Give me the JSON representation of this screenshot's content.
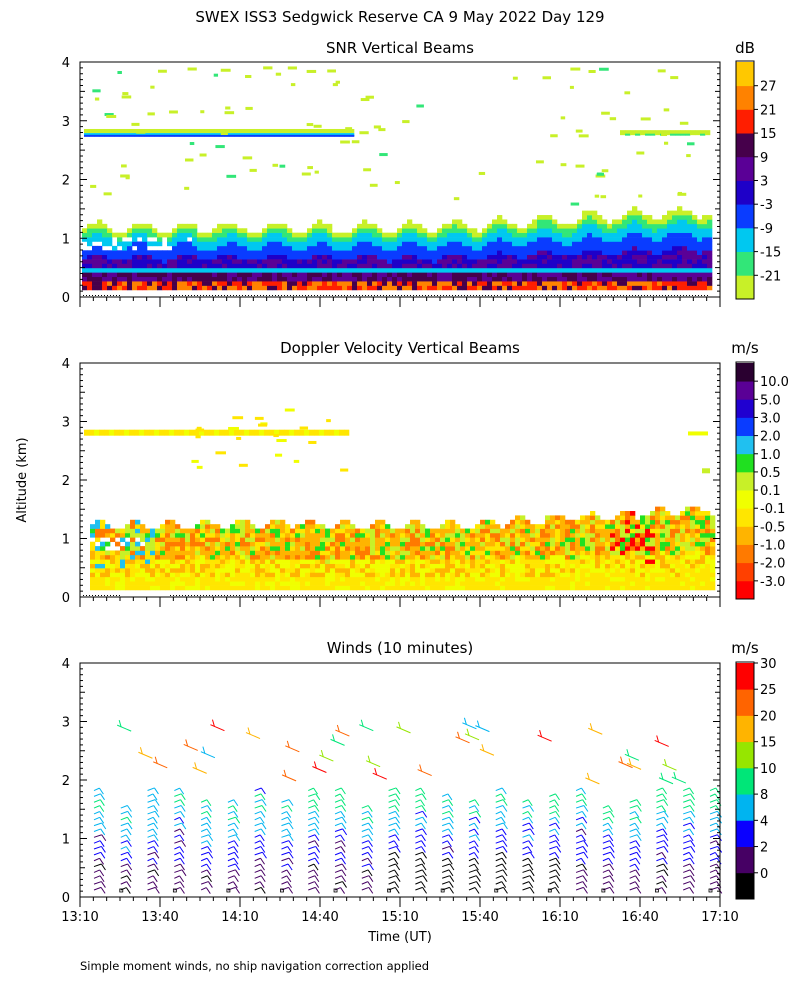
{
  "title": "SWEX ISS3 Sedgwick Reserve CA   9 May 2022 Day 129",
  "shared_ylabel": "Altitude (km)",
  "shared_xlabel": "Time (UT)",
  "footnote": "Simple moment winds, no ship navigation correction applied",
  "colors": {
    "snr": [
      "#c8f028",
      "#32e678",
      "#00c8f0",
      "#0a3cff",
      "#1e00c8",
      "#5a0096",
      "#46004b",
      "#ff1e00",
      "#ff8200",
      "#ffc800"
    ],
    "vel": [
      "#ff0000",
      "#ff4000",
      "#ff7a00",
      "#ffb400",
      "#ffe600",
      "#f0ff00",
      "#c8f028",
      "#20e020",
      "#20c0f0",
      "#0a3cff",
      "#2000d0",
      "#5a0096",
      "#2a0030"
    ],
    "wind": [
      "#000000",
      "#460064",
      "#0a00ff",
      "#00b4f0",
      "#00e678",
      "#96e600",
      "#ffb400",
      "#ff6400",
      "#ff0000"
    ]
  },
  "chart_data": [
    {
      "type": "heatmap",
      "title": "SNR Vertical Beams",
      "ylim": [
        0,
        4
      ],
      "yticks": [
        "0",
        "1",
        "2",
        "3",
        "4"
      ],
      "x_range": [
        "13:10",
        "17:10"
      ],
      "colorbar": {
        "unit": "dB",
        "labels": [
          "-21",
          "-15",
          "-9",
          "-3",
          "3",
          "9",
          "15",
          "21",
          "27"
        ]
      }
    },
    {
      "type": "heatmap",
      "title": "Doppler Velocity Vertical Beams",
      "ylim": [
        0,
        4
      ],
      "yticks": [
        "0",
        "1",
        "2",
        "3",
        "4"
      ],
      "x_range": [
        "13:10",
        "17:10"
      ],
      "colorbar": {
        "unit": "m/s",
        "labels": [
          "-3.0",
          "-2.0",
          "-1.0",
          "-0.5",
          "-0.1",
          "0.1",
          "0.5",
          "1.0",
          "2.0",
          "3.0",
          "5.0",
          "10.0"
        ]
      }
    },
    {
      "type": "scatter",
      "title": "Winds (10 minutes)",
      "ylim": [
        0,
        4
      ],
      "yticks": [
        "0",
        "1",
        "2",
        "3",
        "4"
      ],
      "xticks": [
        "13:10",
        "13:40",
        "14:10",
        "14:40",
        "15:10",
        "15:40",
        "16:10",
        "16:40",
        "17:10"
      ],
      "colorbar": {
        "unit": "m/s",
        "labels": [
          "0",
          "2",
          "4",
          "8",
          "10",
          "15",
          "20",
          "25",
          "30"
        ]
      }
    }
  ]
}
